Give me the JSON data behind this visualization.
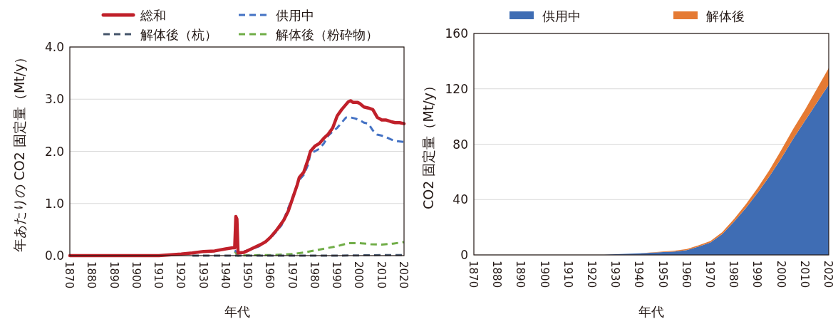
{
  "chart_data": [
    {
      "type": "line",
      "xlabel": "年代",
      "ylabel": "年あたりの CO2 固定量（Mt/y）",
      "xlim": [
        1870,
        2020
      ],
      "xticks": [
        1870,
        1880,
        1890,
        1900,
        1910,
        1920,
        1930,
        1940,
        1950,
        1960,
        1970,
        1980,
        1990,
        2000,
        2010,
        2020
      ],
      "ylim": [
        0,
        4
      ],
      "yticks": [
        {
          "value": 0,
          "label": "0.0"
        },
        {
          "value": 1,
          "label": "1.0"
        },
        {
          "value": 2,
          "label": "2.0"
        },
        {
          "value": 3,
          "label": "3.0"
        },
        {
          "value": 4,
          "label": "4.0"
        }
      ],
      "grid": "y",
      "legend": "top",
      "series": [
        {
          "name": "総和",
          "color": "#c0202a",
          "line_style": "solid",
          "x": [
            1870,
            1900,
            1910,
            1920,
            1925,
            1930,
            1935,
            1940,
            1943,
            1944,
            1944.5,
            1945,
            1945.5,
            1948,
            1950,
            1953,
            1956,
            1958,
            1960,
            1963,
            1966,
            1968,
            1970,
            1972,
            1973,
            1975,
            1977,
            1978,
            1980,
            1982,
            1984,
            1986,
            1988,
            1990,
            1992,
            1995,
            1996,
            1997,
            1999,
            2000,
            2002,
            2004,
            2006,
            2008,
            2010,
            2012,
            2014,
            2016,
            2018,
            2020
          ],
          "values": [
            0,
            0,
            0,
            0.03,
            0.05,
            0.08,
            0.09,
            0.13,
            0.15,
            0.15,
            0.75,
            0.7,
            0.05,
            0.06,
            0.1,
            0.16,
            0.22,
            0.27,
            0.35,
            0.5,
            0.68,
            0.85,
            1.1,
            1.35,
            1.5,
            1.6,
            1.85,
            2.0,
            2.1,
            2.15,
            2.25,
            2.33,
            2.45,
            2.68,
            2.8,
            2.95,
            2.97,
            2.94,
            2.94,
            2.92,
            2.85,
            2.83,
            2.8,
            2.65,
            2.6,
            2.6,
            2.57,
            2.55,
            2.55,
            2.53
          ]
        },
        {
          "name": "供用中",
          "color": "#4472c4",
          "line_style": "dashed",
          "x": [
            1944,
            1945.5,
            1950,
            1955,
            1960,
            1965,
            1973,
            1975,
            1977,
            1978,
            1980,
            1982,
            1984,
            1986,
            1988,
            1990,
            1992,
            1994,
            1996,
            1998,
            2000,
            2002,
            2004,
            2006,
            2008,
            2010,
            2012,
            2014,
            2016,
            2020
          ],
          "values": [
            0.1,
            0.05,
            0.1,
            0.18,
            0.33,
            0.58,
            1.45,
            1.55,
            1.75,
            1.97,
            2.0,
            2.05,
            2.15,
            2.3,
            2.38,
            2.45,
            2.55,
            2.65,
            2.65,
            2.63,
            2.6,
            2.55,
            2.53,
            2.4,
            2.32,
            2.3,
            2.27,
            2.23,
            2.2,
            2.18
          ]
        },
        {
          "name": "解体後（杭）",
          "color": "#44546a",
          "line_style": "dashed",
          "x": [
            1925,
            1960,
            1990,
            2010,
            2020
          ],
          "values": [
            0,
            0,
            0,
            0.01,
            0.01
          ]
        },
        {
          "name": "解体後（粉砕物）",
          "color": "#70ad47",
          "line_style": "dashed",
          "x": [
            1944,
            1945.5,
            1955,
            1960,
            1965,
            1970,
            1975,
            1980,
            1985,
            1990,
            1995,
            2000,
            2005,
            2010,
            2015,
            2020
          ],
          "values": [
            0.08,
            0,
            0.01,
            0.01,
            0.02,
            0.03,
            0.06,
            0.1,
            0.14,
            0.18,
            0.24,
            0.24,
            0.22,
            0.21,
            0.23,
            0.26
          ]
        }
      ]
    },
    {
      "type": "area",
      "stacked": true,
      "xlabel": "年代",
      "ylabel": "CO2 固定量（Mt/y）",
      "xlim": [
        1870,
        2020
      ],
      "xticks": [
        1870,
        1880,
        1890,
        1900,
        1910,
        1920,
        1930,
        1940,
        1950,
        1960,
        1970,
        1980,
        1990,
        2000,
        2010,
        2020
      ],
      "ylim": [
        0,
        160
      ],
      "yticks": [
        0,
        40,
        80,
        120,
        160
      ],
      "grid": "y",
      "legend": "top",
      "x": [
        1870,
        1925,
        1930,
        1940,
        1950,
        1955,
        1960,
        1965,
        1970,
        1975,
        1980,
        1985,
        1990,
        1995,
        2000,
        2005,
        2010,
        2015,
        2020
      ],
      "series": [
        {
          "name": "供用中",
          "color": "#3f6db4",
          "values": [
            0,
            0,
            0.5,
            1.2,
            2,
            2.5,
            3.5,
            6,
            9,
            15,
            24,
            34,
            45,
            57,
            70,
            84,
            97,
            110,
            123
          ]
        },
        {
          "name": "解体後",
          "color": "#e57a33",
          "values": [
            0,
            0,
            0,
            0,
            0.5,
            0.6,
            0.8,
            0.9,
            1,
            1.5,
            2,
            2.7,
            3.5,
            4.5,
            6,
            7,
            8,
            10,
            12
          ]
        }
      ]
    }
  ]
}
